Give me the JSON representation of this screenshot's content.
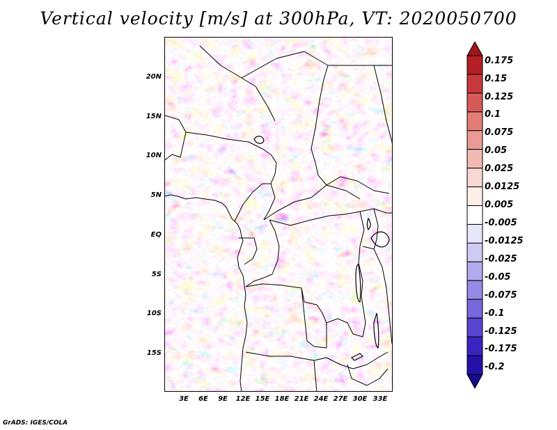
{
  "title": "Vertical velocity [m/s] at 300hPa, VT: 2020050700",
  "footer": "GrADS: IGES/COLA",
  "latitude_labels": [
    "20N",
    "15N",
    "10N",
    "5N",
    "EQ",
    "5S",
    "10S",
    "15S"
  ],
  "longitude_labels": [
    "3E",
    "6E",
    "9E",
    "12E",
    "15E",
    "18E",
    "21E",
    "24E",
    "27E",
    "30E",
    "33E"
  ],
  "colorbar": {
    "labels": [
      "0.175",
      "0.15",
      "0.125",
      "0.1",
      "0.075",
      "0.05",
      "0.025",
      "0.0125",
      "0.005",
      "-0.005",
      "-0.0125",
      "-0.025",
      "-0.05",
      "-0.075",
      "-0.1",
      "-0.125",
      "-0.175",
      "-0.2"
    ],
    "colors": [
      "#a0141b",
      "#b41f25",
      "#c8383a",
      "#d85a57",
      "#e37d76",
      "#eb9b95",
      "#f3bab4",
      "#f9d7d2",
      "#fdeeea",
      "#ffffff",
      "#e8e6fa",
      "#cfcaf4",
      "#b2aaed",
      "#958ae5",
      "#7768dc",
      "#5946d0",
      "#3a24bf",
      "#2511a8",
      "#180a8c"
    ]
  }
}
